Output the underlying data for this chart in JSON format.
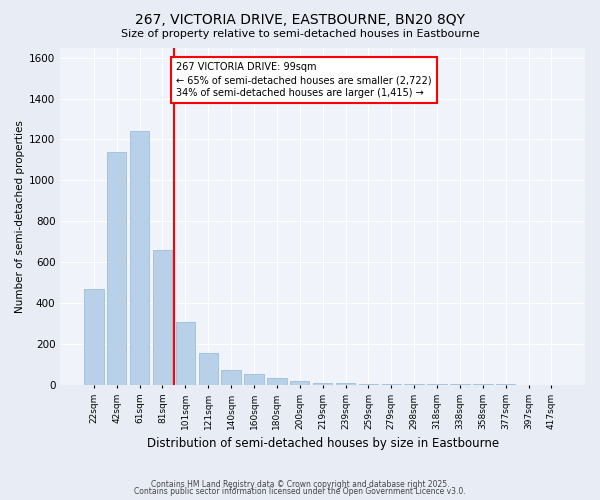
{
  "title1": "267, VICTORIA DRIVE, EASTBOURNE, BN20 8QY",
  "title2": "Size of property relative to semi-detached houses in Eastbourne",
  "xlabel": "Distribution of semi-detached houses by size in Eastbourne",
  "ylabel": "Number of semi-detached properties",
  "categories": [
    "22sqm",
    "42sqm",
    "61sqm",
    "81sqm",
    "101sqm",
    "121sqm",
    "140sqm",
    "160sqm",
    "180sqm",
    "200sqm",
    "219sqm",
    "239sqm",
    "259sqm",
    "279sqm",
    "298sqm",
    "318sqm",
    "338sqm",
    "358sqm",
    "377sqm",
    "397sqm",
    "417sqm"
  ],
  "values": [
    470,
    1140,
    1240,
    660,
    305,
    155,
    70,
    50,
    35,
    20,
    10,
    8,
    5,
    4,
    3,
    2,
    1,
    1,
    1,
    0,
    0
  ],
  "bar_color": "#b8d0e8",
  "bar_edge_color": "#90b8d8",
  "vline_color": "red",
  "annotation_text": "267 VICTORIA DRIVE: 99sqm\n← 65% of semi-detached houses are smaller (2,722)\n34% of semi-detached houses are larger (1,415) →",
  "annotation_box_color": "white",
  "annotation_box_edge": "red",
  "ylim": [
    0,
    1650
  ],
  "yticks": [
    0,
    200,
    400,
    600,
    800,
    1000,
    1200,
    1400,
    1600
  ],
  "footnote1": "Contains HM Land Registry data © Crown copyright and database right 2025.",
  "footnote2": "Contains public sector information licensed under the Open Government Licence v3.0.",
  "bg_color": "#e8edf5",
  "plot_bg_color": "#f0f4fa"
}
